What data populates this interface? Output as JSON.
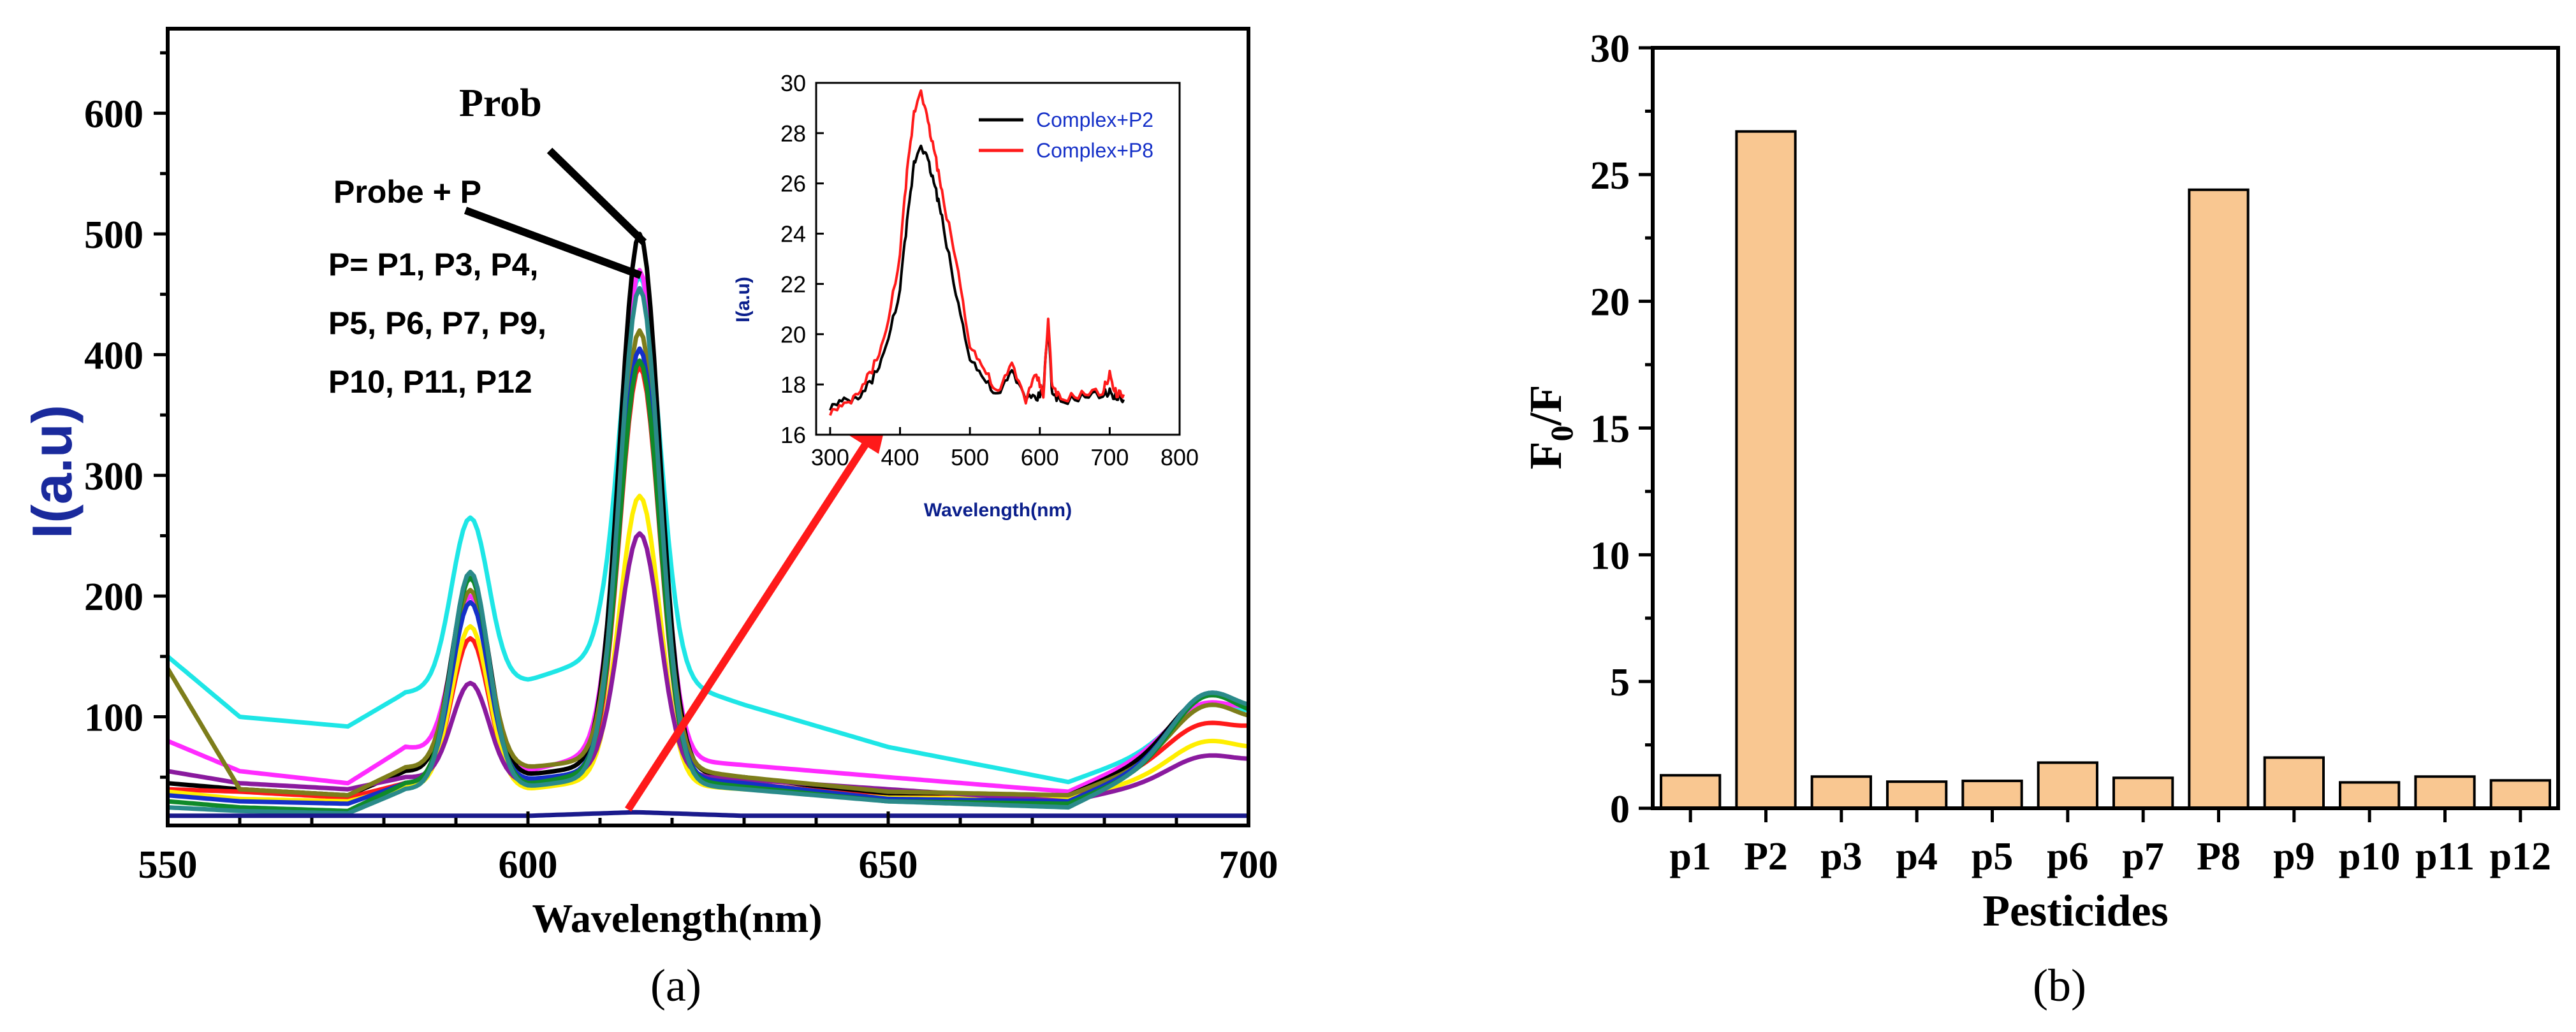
{
  "chart_data": [
    {
      "panel": "a",
      "type": "line",
      "panel_label": "(a)",
      "xlabel": "Wavelength(nm)",
      "ylabel": "I(a.u)",
      "xlim": [
        550,
        700
      ],
      "ylim": [
        10,
        670
      ],
      "xticks": [
        550,
        600,
        650,
        700
      ],
      "yticks": [
        100,
        200,
        300,
        400,
        500,
        600
      ],
      "annotations": {
        "prob": "Prob",
        "probe_p": "Probe + P",
        "p_list_line1": "P= P1, P3, P4,",
        "p_list_line2": "P5, P6, P7, P9,",
        "p_list_line3": "P10, P11, P12"
      },
      "series": [
        {
          "name": "cyan",
          "color": "#1ee6e6",
          "base": [
            [
              550,
              150
            ],
            [
              560,
              100
            ],
            [
              575,
              92
            ],
            [
              583,
              120
            ],
            [
              600,
              130
            ],
            [
              610,
              150
            ],
            [
              630,
              110
            ],
            [
              650,
              75
            ],
            [
              675,
              46
            ],
            [
              700,
              100
            ]
          ],
          "peaks": [
            592,
            265,
            615.5,
            465,
            695,
            110
          ]
        },
        {
          "name": "magenta",
          "color": "#ff2bff",
          "base": [
            [
              550,
              80
            ],
            [
              560,
              55
            ],
            [
              575,
              45
            ],
            [
              583,
              75
            ],
            [
              600,
              55
            ],
            [
              610,
              70
            ],
            [
              630,
              60
            ],
            [
              650,
              50
            ],
            [
              675,
              38
            ],
            [
              700,
              105
            ]
          ],
          "peaks": [
            592,
            200,
            615.5,
            470,
            695,
            112
          ]
        },
        {
          "name": "black",
          "color": "#000000",
          "base": [
            [
              550,
              45
            ],
            [
              560,
              40
            ],
            [
              575,
              35
            ],
            [
              583,
              55
            ],
            [
              600,
              52
            ],
            [
              610,
              60
            ],
            [
              630,
              50
            ],
            [
              650,
              35
            ],
            [
              675,
              35
            ],
            [
              700,
              100
            ]
          ],
          "peaks": [
            592,
            215,
            615.5,
            500,
            695,
            118
          ]
        },
        {
          "name": "red",
          "color": "#ff1a1a",
          "base": [
            [
              550,
              40
            ],
            [
              560,
              38
            ],
            [
              575,
              33
            ],
            [
              583,
              45
            ],
            [
              600,
              42
            ],
            [
              610,
              50
            ],
            [
              630,
              45
            ],
            [
              650,
              33
            ],
            [
              675,
              33
            ],
            [
              700,
              90
            ]
          ],
          "peaks": [
            592,
            165,
            615.5,
            390,
            695,
            95
          ]
        },
        {
          "name": "yellow",
          "color": "#ffee00",
          "base": [
            [
              550,
              38
            ],
            [
              560,
              32
            ],
            [
              575,
              30
            ],
            [
              583,
              42
            ],
            [
              600,
              40
            ],
            [
              610,
              48
            ],
            [
              630,
              40
            ],
            [
              650,
              33
            ],
            [
              675,
              32
            ],
            [
              700,
              70
            ]
          ],
          "peaks": [
            592,
            175,
            615.5,
            283,
            695,
            80
          ]
        },
        {
          "name": "purple",
          "color": "#8a1a9e",
          "base": [
            [
              550,
              55
            ],
            [
              560,
              45
            ],
            [
              575,
              40
            ],
            [
              583,
              50
            ],
            [
              600,
              45
            ],
            [
              610,
              55
            ],
            [
              630,
              48
            ],
            [
              650,
              40
            ],
            [
              675,
              30
            ],
            [
              700,
              62
            ]
          ],
          "peaks": [
            592,
            128,
            615.5,
            252,
            695,
            68
          ]
        },
        {
          "name": "olive",
          "color": "#7d7d1a",
          "base": [
            [
              550,
              140
            ],
            [
              560,
              40
            ],
            [
              575,
              35
            ],
            [
              583,
              58
            ],
            [
              600,
              58
            ],
            [
              610,
              65
            ],
            [
              630,
              50
            ],
            [
              650,
              38
            ],
            [
              675,
              35
            ],
            [
              700,
              90
            ]
          ],
          "peaks": [
            592,
            205,
            615.5,
            420,
            695,
            110
          ]
        },
        {
          "name": "blue",
          "color": "#1530c8",
          "base": [
            [
              550,
              35
            ],
            [
              560,
              30
            ],
            [
              575,
              28
            ],
            [
              583,
              45
            ],
            [
              600,
              48
            ],
            [
              610,
              55
            ],
            [
              630,
              45
            ],
            [
              650,
              32
            ],
            [
              675,
              30
            ],
            [
              700,
              95
            ]
          ],
          "peaks": [
            592,
            195,
            615.5,
            405,
            695,
            120
          ]
        },
        {
          "name": "green",
          "color": "#0f8a2a",
          "base": [
            [
              550,
              30
            ],
            [
              560,
              25
            ],
            [
              575,
              22
            ],
            [
              583,
              45
            ],
            [
              600,
              44
            ],
            [
              610,
              55
            ],
            [
              630,
              42
            ],
            [
              650,
              30
            ],
            [
              675,
              28
            ],
            [
              700,
              92
            ]
          ],
          "peaks": [
            592,
            215,
            615.5,
            395,
            695,
            118
          ]
        },
        {
          "name": "teal",
          "color": "#2a8a8a",
          "base": [
            [
              550,
              25
            ],
            [
              560,
              22
            ],
            [
              575,
              20
            ],
            [
              583,
              40
            ],
            [
              600,
              42
            ],
            [
              610,
              50
            ],
            [
              630,
              40
            ],
            [
              650,
              30
            ],
            [
              675,
              25
            ],
            [
              700,
              98
            ]
          ],
          "peaks": [
            592,
            220,
            615.5,
            455,
            695,
            120
          ]
        },
        {
          "name": "navy-flat",
          "color": "#1a1a8c",
          "base": [
            [
              550,
              18
            ],
            [
              600,
              18
            ],
            [
              615,
              21
            ],
            [
              630,
              18
            ],
            [
              700,
              18
            ]
          ],
          "peaks": [
            615.5,
            0,
            615.5,
            0,
            695,
            0
          ]
        }
      ],
      "inset": {
        "xlabel": "Wavelength(nm)",
        "ylabel": "I(a.u)",
        "xlim": [
          280,
          800
        ],
        "ylim": [
          16,
          30
        ],
        "xticks": [
          300,
          400,
          500,
          600,
          700,
          800
        ],
        "yticks": [
          16,
          18,
          20,
          22,
          24,
          26,
          28,
          30
        ],
        "legend": [
          "Complex+P2",
          "Complex+P8"
        ],
        "series": [
          {
            "name": "Complex+P2",
            "color": "#000000",
            "x": [
              300,
              320,
              340,
              360,
              380,
              400,
              410,
              420,
              430,
              440,
              450,
              460,
              480,
              500,
              520,
              540,
              560,
              580,
              595,
              605,
              612,
              618,
              630,
              660,
              690,
              700,
              710,
              720
            ],
            "y": [
              17.1,
              17.3,
              17.4,
              18.2,
              19.4,
              21.8,
              24.4,
              26.8,
              27.6,
              26.9,
              25.9,
              24.6,
              21.6,
              19.1,
              18.2,
              17.5,
              18.5,
              17.5,
              17.4,
              17.8,
              20.4,
              17.5,
              17.3,
              17.5,
              17.6,
              17.7,
              17.5,
              17.4
            ]
          },
          {
            "name": "Complex+P8",
            "color": "#ff1a1a",
            "x": [
              300,
              320,
              340,
              360,
              380,
              400,
              410,
              420,
              430,
              440,
              450,
              460,
              480,
              500,
              520,
              540,
              560,
              580,
              595,
              605,
              612,
              618,
              630,
              660,
              690,
              700,
              710,
              720
            ],
            "y": [
              16.9,
              17.1,
              17.6,
              18.6,
              20.0,
              23.2,
              26.4,
              28.8,
              29.8,
              28.4,
              27.2,
              25.6,
              23.0,
              19.6,
              18.6,
              17.6,
              18.8,
              17.4,
              18.4,
              17.6,
              20.6,
              17.8,
              17.4,
              17.6,
              17.7,
              18.4,
              17.6,
              17.6
            ]
          }
        ]
      }
    },
    {
      "panel": "b",
      "type": "bar",
      "panel_label": "(b)",
      "xlabel": "Pesticides",
      "ylabel": "F0/F",
      "ylim": [
        0,
        30
      ],
      "yticks": [
        0,
        5,
        10,
        15,
        20,
        25,
        30
      ],
      "categories": [
        "p1",
        "P2",
        "p3",
        "p4",
        "p5",
        "p6",
        "p7",
        "P8",
        "p9",
        "p10",
        "p11",
        "p12"
      ],
      "values": [
        1.3,
        26.7,
        1.25,
        1.05,
        1.08,
        1.8,
        1.2,
        24.4,
        2.0,
        1.02,
        1.25,
        1.1
      ]
    }
  ]
}
